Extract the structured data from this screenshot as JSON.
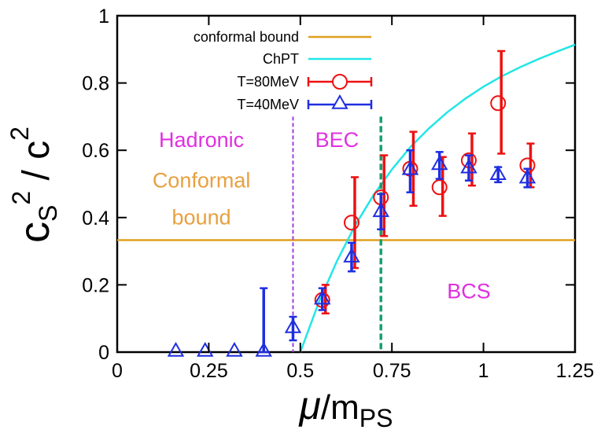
{
  "chart_data": {
    "type": "scatter",
    "xlabel": {
      "symbol": "μ",
      "slash": "/m",
      "subscript": "PS"
    },
    "ylabel": {
      "base": "c",
      "base_sub": "S",
      "sup1": "2",
      "mid": " / c",
      "sup2": "2"
    },
    "xlim": [
      0,
      1.25
    ],
    "ylim": [
      0,
      1
    ],
    "xticks": [
      0,
      0.25,
      0.5,
      0.75,
      1,
      1.25
    ],
    "xtick_labels": [
      "0",
      "0.25",
      "0.5",
      "0.75",
      "1",
      "1.25"
    ],
    "yticks": [
      0,
      0.2,
      0.4,
      0.6,
      0.8,
      1
    ],
    "ytick_labels": [
      "0",
      "0.2",
      "0.4",
      "0.6",
      "0.8",
      "1"
    ],
    "grid": false,
    "legend_position": "top-left",
    "conformal_bound": {
      "name": "conformal bound",
      "y": 0.333,
      "color": "#e0a020"
    },
    "chpt": {
      "name": "ChPT",
      "color": "#22e6e6",
      "x": [
        0.5,
        0.55,
        0.6,
        0.65,
        0.7,
        0.75,
        0.8,
        0.85,
        0.9,
        0.95,
        1.0,
        1.05,
        1.1,
        1.15,
        1.2,
        1.25
      ],
      "y": [
        0.0,
        0.147,
        0.271,
        0.377,
        0.467,
        0.543,
        0.609,
        0.664,
        0.712,
        0.753,
        0.789,
        0.82,
        0.847,
        0.871,
        0.893,
        0.914
      ]
    },
    "series": [
      {
        "name": "T=80MeV",
        "color": "#ee1111",
        "marker": "circle",
        "points": [
          {
            "x": 0.56,
            "y": 0.155,
            "lo": 0.115,
            "hi": 0.2
          },
          {
            "x": 0.64,
            "y": 0.385,
            "lo": 0.25,
            "hi": 0.52
          },
          {
            "x": 0.72,
            "y": 0.46,
            "lo": 0.345,
            "hi": 0.585
          },
          {
            "x": 0.8,
            "y": 0.545,
            "lo": 0.435,
            "hi": 0.655
          },
          {
            "x": 0.88,
            "y": 0.49,
            "lo": 0.405,
            "hi": 0.58
          },
          {
            "x": 0.96,
            "y": 0.57,
            "lo": 0.495,
            "hi": 0.65
          },
          {
            "x": 1.04,
            "y": 0.74,
            "lo": 0.59,
            "hi": 0.895
          },
          {
            "x": 1.12,
            "y": 0.555,
            "lo": 0.49,
            "hi": 0.62
          }
        ]
      },
      {
        "name": "T=40MeV",
        "color": "#1f2ee0",
        "marker": "triangle",
        "points": [
          {
            "x": 0.16,
            "y": 0.0,
            "lo": 0.0,
            "hi": 0.0
          },
          {
            "x": 0.24,
            "y": 0.0,
            "lo": 0.0,
            "hi": 0.0
          },
          {
            "x": 0.32,
            "y": 0.0,
            "lo": 0.0,
            "hi": 0.0
          },
          {
            "x": 0.4,
            "y": 0.0,
            "lo": 0.0,
            "hi": 0.19
          },
          {
            "x": 0.48,
            "y": 0.07,
            "lo": 0.035,
            "hi": 0.105
          },
          {
            "x": 0.56,
            "y": 0.155,
            "lo": 0.125,
            "hi": 0.19
          },
          {
            "x": 0.64,
            "y": 0.28,
            "lo": 0.24,
            "hi": 0.325
          },
          {
            "x": 0.72,
            "y": 0.415,
            "lo": 0.365,
            "hi": 0.47
          },
          {
            "x": 0.8,
            "y": 0.54,
            "lo": 0.475,
            "hi": 0.6
          },
          {
            "x": 0.88,
            "y": 0.555,
            "lo": 0.515,
            "hi": 0.595
          },
          {
            "x": 0.96,
            "y": 0.545,
            "lo": 0.51,
            "hi": 0.585
          },
          {
            "x": 1.04,
            "y": 0.525,
            "lo": 0.505,
            "hi": 0.55
          },
          {
            "x": 1.12,
            "y": 0.515,
            "lo": 0.49,
            "hi": 0.545
          }
        ]
      }
    ],
    "vlines": [
      {
        "x": 0.48,
        "color": "#a040e0",
        "dash": "short"
      },
      {
        "x": 0.72,
        "color": "#16a070",
        "dash": "long"
      }
    ],
    "annotations": [
      {
        "text": "Hadronic",
        "x": 0.23,
        "y": 0.61,
        "color": "#e030e0"
      },
      {
        "text": "BEC",
        "x": 0.6,
        "y": 0.61,
        "color": "#e030e0"
      },
      {
        "text": "Conformal",
        "x": 0.23,
        "y": 0.49,
        "color": "#e8a040"
      },
      {
        "text": "bound",
        "x": 0.23,
        "y": 0.38,
        "color": "#e8a040"
      },
      {
        "text": "BCS",
        "x": 0.96,
        "y": 0.16,
        "color": "#e030e0"
      }
    ]
  }
}
